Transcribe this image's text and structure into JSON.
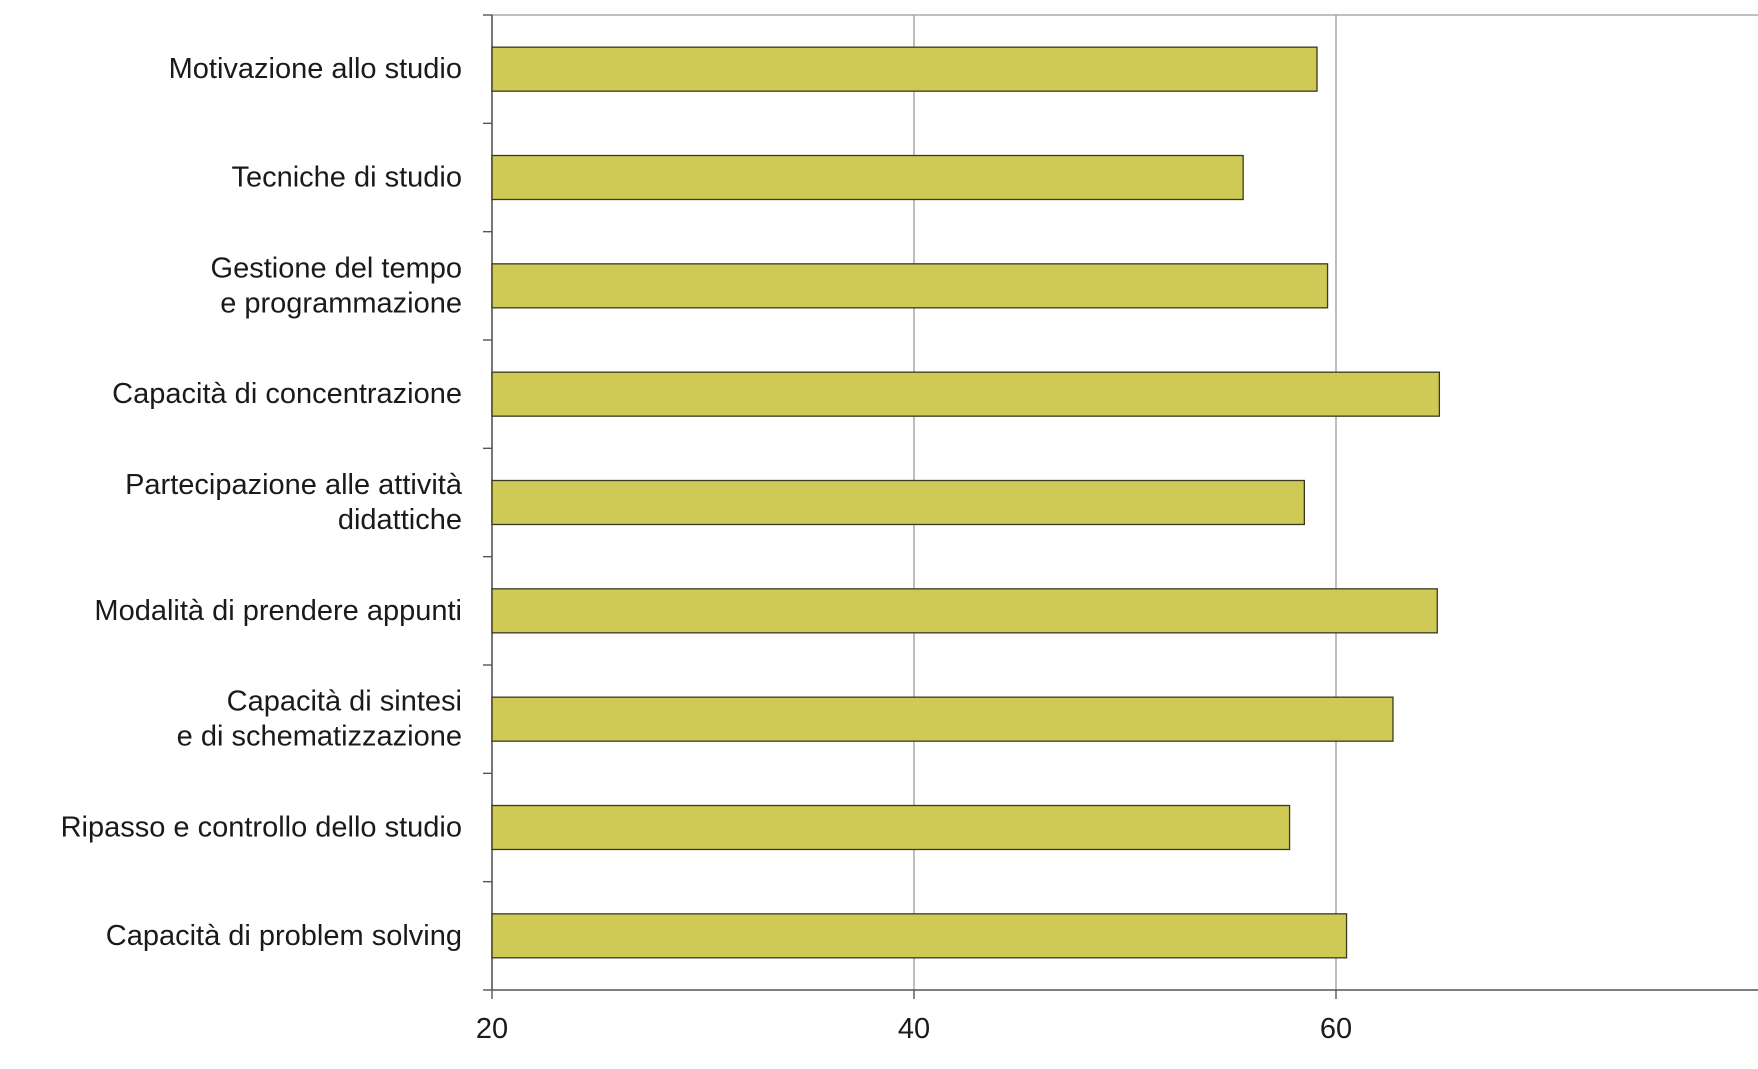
{
  "chart_data": {
    "type": "bar",
    "orientation": "horizontal",
    "title": "",
    "xlabel": "",
    "ylabel": "",
    "categories": [
      [
        "Motivazione allo studio"
      ],
      [
        "Tecniche di studio"
      ],
      [
        "Gestione del tempo",
        "e programmazione"
      ],
      [
        "Capacità di concentrazione"
      ],
      [
        "Partecipazione alle attività",
        "didattiche"
      ],
      [
        "Modalità di prendere appunti"
      ],
      [
        "Capacità di sintesi",
        "e di schematizzazione"
      ],
      [
        "Ripasso e controllo dello studio"
      ],
      [
        "Capacità di problem solving"
      ]
    ],
    "values": [
      59.1,
      55.6,
      59.6,
      64.9,
      58.5,
      64.8,
      62.7,
      57.8,
      60.5
    ],
    "xlim": [
      20,
      80
    ],
    "xticks": [
      20,
      40,
      60
    ],
    "grid": true,
    "legend": "none",
    "bar_color": "#cfca55",
    "bar_edge_color": "#3a3a20"
  }
}
